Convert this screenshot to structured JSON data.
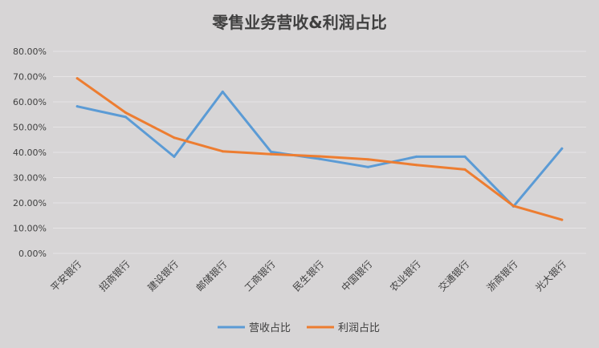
{
  "colors": {
    "background": "#d7d5d6",
    "gridline": "#e6e4e5",
    "text": "#404040",
    "revenue": "#5b9bd5",
    "profit": "#ed7d31"
  },
  "chart_data": {
    "type": "line",
    "title": "零售业务营收&利润占比",
    "xlabel": "",
    "ylabel": "",
    "ylim": [
      0,
      0.8
    ],
    "y_ticks": [
      0,
      0.1,
      0.2,
      0.3,
      0.4,
      0.5,
      0.6,
      0.7,
      0.8
    ],
    "y_tick_labels": [
      "0.00%",
      "10.00%",
      "20.00%",
      "30.00%",
      "40.00%",
      "50.00%",
      "60.00%",
      "70.00%",
      "80.00%"
    ],
    "grid": true,
    "legend_position": "bottom",
    "categories": [
      "平安银行",
      "招商银行",
      "建设银行",
      "邮储银行",
      "工商银行",
      "民生银行",
      "中国银行",
      "农业银行",
      "交通银行",
      "浙商银行",
      "光大银行"
    ],
    "series": [
      {
        "name": "营收占比",
        "color": "#5b9bd5",
        "values": [
          0.582,
          0.54,
          0.383,
          0.64,
          0.402,
          0.374,
          0.342,
          0.383,
          0.383,
          0.186,
          0.415
        ]
      },
      {
        "name": "利润占比",
        "color": "#ed7d31",
        "values": [
          0.693,
          0.557,
          0.458,
          0.404,
          0.393,
          0.384,
          0.372,
          0.35,
          0.332,
          0.188,
          0.133
        ]
      }
    ]
  }
}
